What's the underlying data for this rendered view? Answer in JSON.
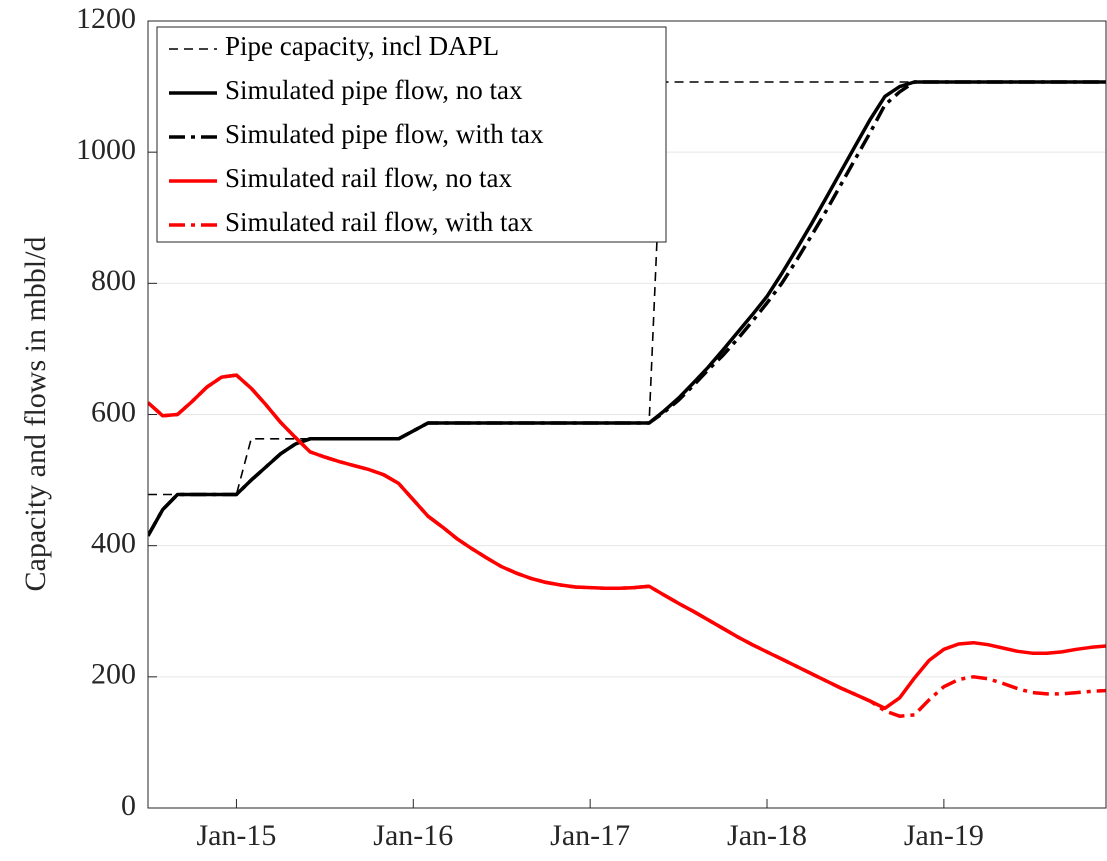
{
  "chart_data": {
    "type": "line",
    "ylabel": "Capacity and flows in mbbl/d",
    "x": [
      "2014-07",
      "2014-08",
      "2014-09",
      "2014-10",
      "2014-11",
      "2014-12",
      "2015-01",
      "2015-02",
      "2015-03",
      "2015-04",
      "2015-05",
      "2015-06",
      "2015-07",
      "2015-08",
      "2015-09",
      "2015-10",
      "2015-11",
      "2015-12",
      "2016-01",
      "2016-02",
      "2016-03",
      "2016-04",
      "2016-05",
      "2016-06",
      "2016-07",
      "2016-08",
      "2016-09",
      "2016-10",
      "2016-11",
      "2016-12",
      "2017-01",
      "2017-02",
      "2017-03",
      "2017-04",
      "2017-05",
      "2017-06",
      "2017-07",
      "2017-08",
      "2017-09",
      "2017-10",
      "2017-11",
      "2017-12",
      "2018-01",
      "2018-02",
      "2018-03",
      "2018-04",
      "2018-05",
      "2018-06",
      "2018-07",
      "2018-08",
      "2018-09",
      "2018-10",
      "2018-11",
      "2018-12",
      "2019-01",
      "2019-02",
      "2019-03",
      "2019-04",
      "2019-05",
      "2019-06",
      "2019-07",
      "2019-08",
      "2019-09",
      "2019-10",
      "2019-11",
      "2019-12"
    ],
    "series": [
      {
        "name": "Pipe capacity, incl DAPL",
        "color": "#000000",
        "width": 1.6,
        "dash": "--",
        "x": [
          "2014-07",
          "2015-01",
          "2015-02",
          "2015-12",
          "2016-02",
          "2017-05",
          "2017-06",
          "2019-12"
        ],
        "values": [
          478,
          478,
          563,
          563,
          587,
          587,
          1107,
          1107
        ]
      },
      {
        "name": "Simulated pipe flow, no tax",
        "color": "#000000",
        "width": 3.5,
        "dash": "-",
        "values": [
          415,
          455,
          478,
          478,
          478,
          478,
          478,
          500,
          520,
          540,
          555,
          563,
          563,
          563,
          563,
          563,
          563,
          563,
          575,
          587,
          587,
          587,
          587,
          587,
          587,
          587,
          587,
          587,
          587,
          587,
          587,
          587,
          587,
          587,
          587,
          605,
          625,
          648,
          672,
          698,
          725,
          752,
          780,
          815,
          852,
          890,
          930,
          970,
          1010,
          1050,
          1085,
          1100,
          1107,
          1107,
          1107,
          1107,
          1107,
          1107,
          1107,
          1107,
          1107,
          1107,
          1107,
          1107,
          1107,
          1107
        ]
      },
      {
        "name": "Simulated pipe flow, with tax",
        "color": "#000000",
        "width": 3.5,
        "dash": "-.",
        "values": [
          415,
          455,
          478,
          478,
          478,
          478,
          478,
          500,
          520,
          540,
          555,
          563,
          563,
          563,
          563,
          563,
          563,
          563,
          575,
          587,
          587,
          587,
          587,
          587,
          587,
          587,
          587,
          587,
          587,
          587,
          587,
          587,
          587,
          587,
          587,
          603,
          622,
          644,
          668,
          690,
          715,
          742,
          770,
          800,
          835,
          872,
          910,
          950,
          990,
          1030,
          1072,
          1092,
          1107,
          1107,
          1107,
          1107,
          1107,
          1107,
          1107,
          1107,
          1107,
          1107,
          1107,
          1107,
          1107,
          1107
        ]
      },
      {
        "name": "Simulated rail flow, no tax",
        "color": "#ff0000",
        "width": 3.5,
        "dash": "-",
        "values": [
          618,
          598,
          600,
          620,
          642,
          657,
          660,
          640,
          615,
          588,
          565,
          543,
          535,
          528,
          522,
          516,
          508,
          495,
          470,
          445,
          428,
          410,
          395,
          381,
          368,
          358,
          350,
          344,
          340,
          337,
          336,
          335,
          335,
          336,
          338,
          325,
          312,
          300,
          287,
          274,
          261,
          249,
          238,
          227,
          216,
          205,
          194,
          183,
          173,
          163,
          152,
          168,
          198,
          225,
          242,
          250,
          252,
          249,
          244,
          239,
          236,
          236,
          238,
          242,
          245,
          247
        ]
      },
      {
        "name": "Simulated rail flow, with tax",
        "color": "#ff0000",
        "width": 3.5,
        "dash": "-.",
        "values": [
          618,
          598,
          600,
          620,
          642,
          657,
          660,
          640,
          615,
          588,
          565,
          543,
          535,
          528,
          522,
          516,
          508,
          495,
          470,
          445,
          428,
          410,
          395,
          381,
          368,
          358,
          350,
          344,
          340,
          337,
          336,
          335,
          335,
          336,
          338,
          325,
          312,
          300,
          287,
          274,
          261,
          249,
          238,
          227,
          216,
          205,
          194,
          183,
          173,
          163,
          148,
          140,
          142,
          165,
          185,
          196,
          200,
          197,
          190,
          182,
          176,
          174,
          174,
          176,
          178,
          179
        ]
      }
    ],
    "xlim": [
      "2014-07",
      "2019-12"
    ],
    "xticks": [
      {
        "value": "2015-01",
        "label": "Jan-15"
      },
      {
        "value": "2016-01",
        "label": "Jan-16"
      },
      {
        "value": "2017-01",
        "label": "Jan-17"
      },
      {
        "value": "2018-01",
        "label": "Jan-18"
      },
      {
        "value": "2019-01",
        "label": "Jan-19"
      }
    ],
    "ylim": [
      0,
      1200
    ],
    "yticks": [
      0,
      200,
      400,
      600,
      800,
      1000,
      1200
    ],
    "grid": true,
    "legend": "upper left"
  }
}
